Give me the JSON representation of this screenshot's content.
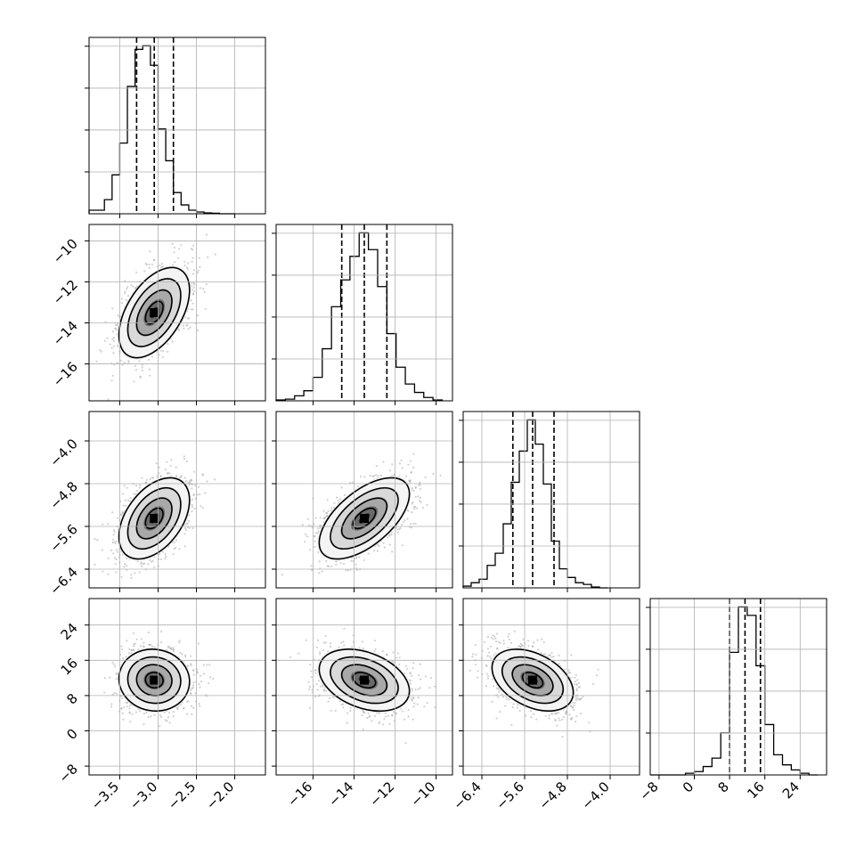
{
  "chart_data": {
    "type": "corner",
    "description_note": "",
    "n_params": 4,
    "params": [
      {
        "range": [
          -3.9,
          -1.6
        ],
        "ticks": [
          -3.5,
          -3.0,
          -2.5,
          -2.0
        ],
        "tick_labels": [
          "−3.5",
          "−3.0",
          "−2.5",
          "−2.0"
        ],
        "quantiles": [
          -3.28,
          -3.05,
          -2.8
        ],
        "center": -3.05,
        "sigma": 0.23
      },
      {
        "range": [
          -17.8,
          -9.2
        ],
        "ticks": [
          -16,
          -14,
          -12,
          -10
        ],
        "tick_labels": [
          "−16",
          "−14",
          "−12",
          "−10"
        ],
        "quantiles": [
          -14.6,
          -13.5,
          -12.4
        ],
        "center": -13.5,
        "sigma": 1.1
      },
      {
        "range": [
          -6.75,
          -3.45
        ],
        "ticks": [
          -6.4,
          -5.6,
          -4.8,
          -4.0
        ],
        "tick_labels": [
          "−6.4",
          "−5.6",
          "−4.8",
          "−4.0"
        ],
        "quantiles": [
          -5.82,
          -5.45,
          -5.05
        ],
        "center": -5.45,
        "sigma": 0.38
      },
      {
        "range": [
          -10,
          30
        ],
        "ticks": [
          -8,
          0,
          8,
          16,
          24
        ],
        "tick_labels": [
          "−8",
          "0",
          "8",
          "16",
          "24"
        ],
        "quantiles": [
          8,
          11.5,
          15
        ],
        "center": 11.5,
        "sigma": 3.5
      }
    ],
    "histograms": [
      {
        "param": 0,
        "bin_edges": [
          -3.9,
          -3.8,
          -3.7,
          -3.6,
          -3.5,
          -3.4,
          -3.3,
          -3.2,
          -3.1,
          -3.0,
          -2.9,
          -2.8,
          -2.7,
          -2.6,
          -2.5,
          -2.4,
          -2.3,
          -2.2,
          -2.1,
          -2.0
        ],
        "counts": [
          2,
          2,
          8,
          22,
          40,
          72,
          93,
          95,
          84,
          48,
          30,
          12,
          5,
          2,
          1,
          0.5,
          0.3,
          0,
          0
        ]
      },
      {
        "param": 1,
        "bin_edges": [
          -17.8,
          -17.35,
          -16.9,
          -16.45,
          -16.0,
          -15.55,
          -15.1,
          -14.65,
          -14.2,
          -13.75,
          -13.3,
          -12.85,
          -12.4,
          -11.95,
          -11.5,
          -11.05,
          -10.6,
          -10.15,
          -9.7
        ],
        "counts": [
          0.5,
          1,
          3,
          6,
          14,
          31,
          56,
          72,
          86,
          100,
          90,
          68,
          40,
          20,
          10,
          5,
          2,
          0.5
        ]
      },
      {
        "param": 2,
        "bin_edges": [
          -6.75,
          -6.6,
          -6.45,
          -6.3,
          -6.15,
          -6.0,
          -5.85,
          -5.7,
          -5.55,
          -5.4,
          -5.25,
          -5.1,
          -4.95,
          -4.8,
          -4.65,
          -4.5,
          -4.35,
          -4.2,
          -4.05
        ],
        "counts": [
          1,
          3,
          5,
          13,
          20,
          37,
          61,
          79,
          97,
          83,
          60,
          27,
          11,
          6,
          3,
          2,
          0.5,
          0
        ]
      },
      {
        "param": 3,
        "bin_edges": [
          -10,
          -8,
          -6,
          -4,
          -2,
          0,
          2,
          4,
          6,
          8,
          10,
          12,
          14,
          16,
          18,
          20,
          22,
          24,
          26,
          28
        ],
        "counts": [
          0,
          0,
          0,
          0,
          1,
          2,
          5,
          10,
          25,
          73,
          100,
          95,
          65,
          30,
          12,
          6,
          3,
          1,
          0
        ]
      }
    ],
    "joint_2d": [
      {
        "x_param": 0,
        "y_param": 1,
        "correlation": 0.5
      },
      {
        "x_param": 0,
        "y_param": 2,
        "correlation": 0.45
      },
      {
        "x_param": 1,
        "y_param": 2,
        "correlation": 0.6
      },
      {
        "x_param": 0,
        "y_param": 3,
        "correlation": -0.05
      },
      {
        "x_param": 1,
        "y_param": 3,
        "correlation": -0.35
      },
      {
        "x_param": 2,
        "y_param": 3,
        "correlation": -0.4
      }
    ],
    "contour_levels_sigma": [
      0.5,
      1.0,
      1.5,
      2.0
    ],
    "grid": true,
    "colors": {
      "hist": "#000000",
      "quantile": "#000000",
      "points": "#9a9a9a",
      "grid": "#b0b0b0"
    }
  }
}
